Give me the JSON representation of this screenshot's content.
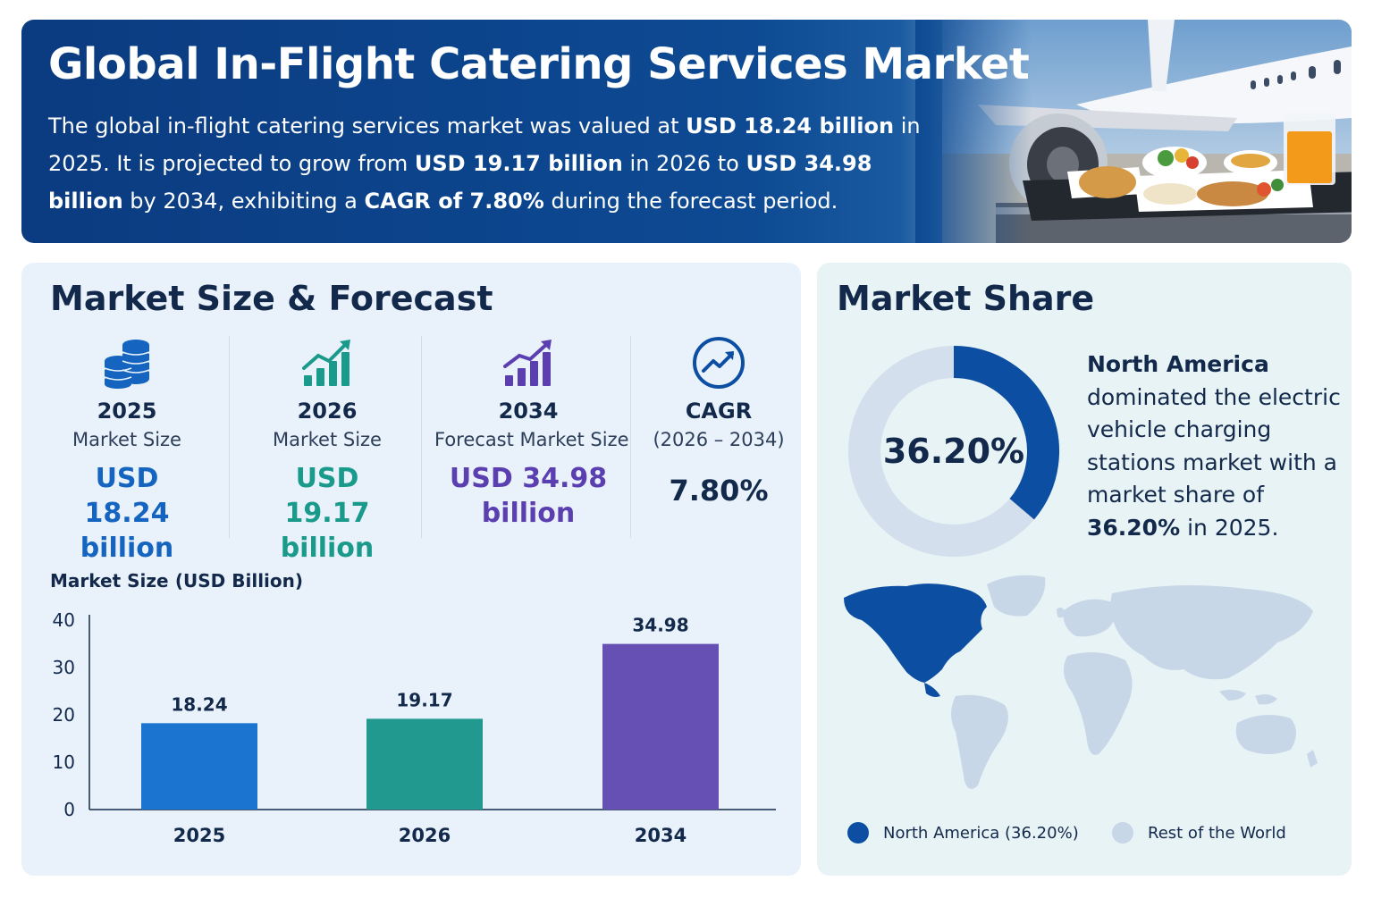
{
  "header": {
    "title": "Global In-Flight Catering Services Market",
    "p1": "The global in-flight catering services market was valued at ",
    "b1": "USD 18.24 billion",
    "p2": " in 2025. It is projected to grow from ",
    "b2": "USD 19.17 billion",
    "p3": " in 2026 to ",
    "b3": "USD 34.98 billion",
    "p4": " by 2034, exhibiting a ",
    "b4": "CAGR of 7.80%",
    "p5": " during the forecast period."
  },
  "forecast": {
    "title": "Market Size & Forecast",
    "stats": [
      {
        "year": "2025",
        "sub": "Market Size",
        "value_line1": "USD 18.24",
        "value_line2": "billion",
        "color": "#1565c0",
        "icon": "coins-icon"
      },
      {
        "year": "2026",
        "sub": "Market Size",
        "value_line1": "USD 19.17",
        "value_line2": "billion",
        "color": "#1a9a8a",
        "icon": "growth-chart-icon"
      },
      {
        "year": "2034",
        "sub": "Forecast Market Size",
        "value_line1": "USD 34.98",
        "value_line2": "billion",
        "color": "#5b3fb0",
        "icon": "bar-chart-up-icon"
      },
      {
        "year": "CAGR",
        "sub": "(2026 – 2034)",
        "value_line1": "7.80%",
        "value_line2": "",
        "color": "#13294b",
        "icon": "trend-circle-icon"
      }
    ],
    "chart_title": "Market Size",
    "chart_unit": "(USD Billion)"
  },
  "chart_data": {
    "type": "bar",
    "categories": [
      "2025",
      "2026",
      "2034"
    ],
    "values": [
      18.24,
      19.17,
      34.98
    ],
    "data_labels": [
      "18.24",
      "19.17",
      "34.98"
    ],
    "colors": [
      "#1b74d0",
      "#21998f",
      "#6650b3"
    ],
    "ylabel": "Market Size (USD Billion)",
    "ylim": [
      0,
      40
    ],
    "yticks": [
      "0",
      "10",
      "20",
      "30",
      "40"
    ],
    "grid": false
  },
  "share": {
    "title": "Market Share",
    "percent_label": "36.20%",
    "percent_value": 36.2,
    "region": "North America",
    "text": " dominated the electric vehicle charging stations market with a market share of ",
    "bold_pct": "36.20%",
    "text_end": " in 2025.",
    "colors": {
      "primary": "#0b4ea2",
      "rest": "#d3dfec"
    },
    "legend": [
      {
        "label": "North America (36.20%)",
        "color": "#0b4ea2"
      },
      {
        "label": "Rest of the World",
        "color": "#c8d7e8"
      }
    ]
  }
}
